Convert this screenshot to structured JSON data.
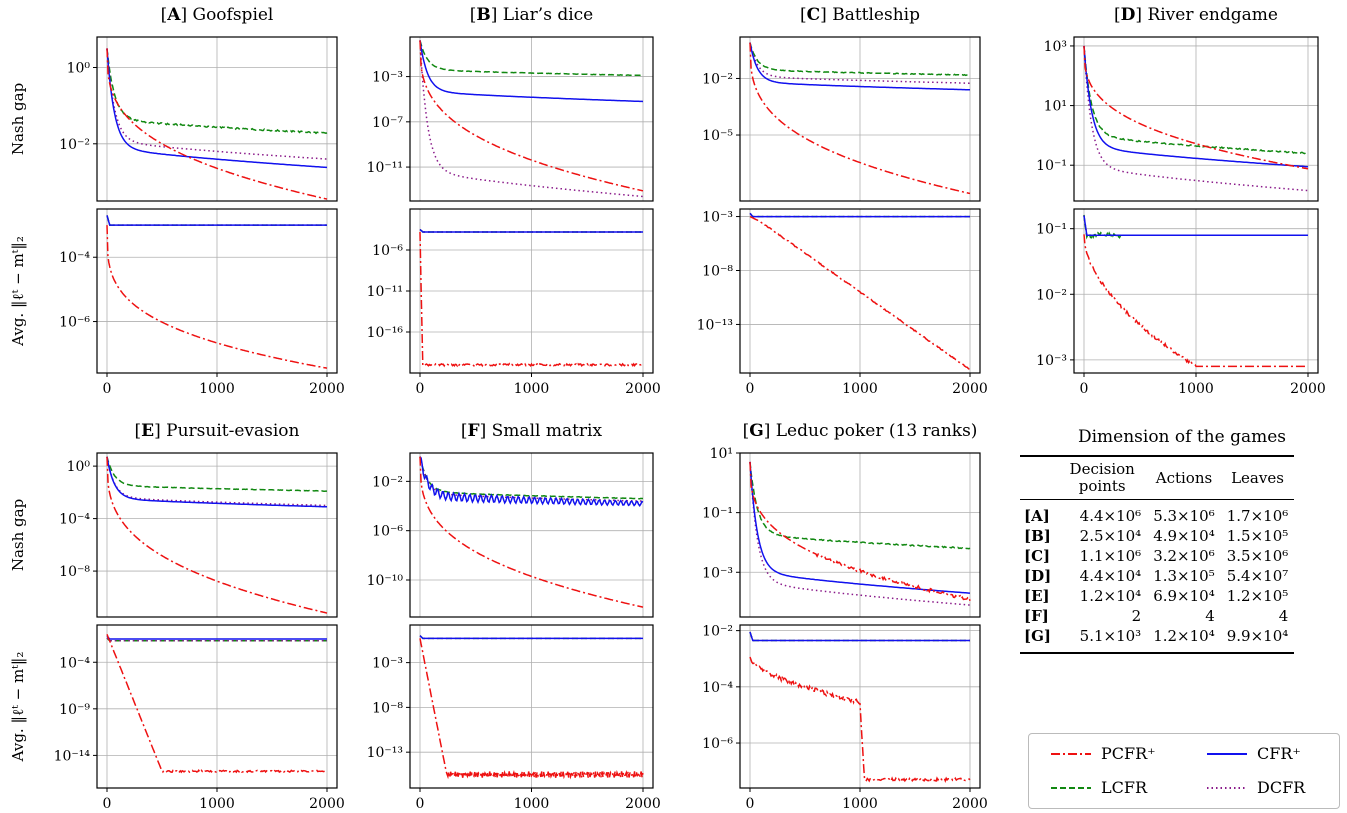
{
  "chart_data": [
    {
      "id": "A",
      "type": "line",
      "title": "[A] Goofspiel",
      "title_letter": "A",
      "title_name": "Goofspiel",
      "panels": [
        {
          "ylabel": "Nash gap",
          "yscale": "log",
          "ylim": [
            -3.5,
            0.8
          ],
          "yticks": [
            {
              "v": 0,
              "label": "10⁰"
            },
            {
              "v": -2,
              "label": "10⁻²"
            }
          ],
          "series": [
            {
              "name": "LCFR",
              "end": -1.72
            },
            {
              "name": "DCFR",
              "end": -2.4
            },
            {
              "name": "CFR+",
              "end": -2.62
            },
            {
              "name": "PCFR+",
              "end": -3.45
            }
          ]
        },
        {
          "ylabel": "Avg. ‖ℓᵗ − mᵗ‖₂",
          "yscale": "log",
          "ylim": [
            -7.6,
            -2.5
          ],
          "yticks": [
            {
              "v": -4,
              "label": "10⁻⁴"
            },
            {
              "v": -6,
              "label": "10⁻⁶"
            }
          ],
          "series": [
            {
              "name": "LCFR",
              "flat": -3.0
            },
            {
              "name": "DCFR",
              "flat": -3.0
            },
            {
              "name": "CFR+",
              "flat": -3.0
            },
            {
              "name": "PCFR+",
              "start": -3.0,
              "end": -7.45
            }
          ]
        }
      ]
    },
    {
      "id": "B",
      "type": "line",
      "title": "[B] Liar’s dice",
      "title_letter": "B",
      "title_name": "Liar’s dice",
      "panels": [
        {
          "ylabel": "",
          "yscale": "log",
          "ylim": [
            -14,
            0.5
          ],
          "yticks": [
            {
              "v": -3,
              "label": "10⁻³"
            },
            {
              "v": -7,
              "label": "10⁻⁷"
            },
            {
              "v": -11,
              "label": "10⁻¹¹"
            }
          ],
          "series": [
            {
              "name": "LCFR",
              "end": -2.9
            },
            {
              "name": "CFR+",
              "end": -5.2
            },
            {
              "name": "PCFR+",
              "end": -13.1
            },
            {
              "name": "DCFR",
              "end": -13.6
            }
          ]
        },
        {
          "ylabel": "",
          "yscale": "log",
          "ylim": [
            -21,
            -1
          ],
          "yticks": [
            {
              "v": -6,
              "label": "10⁻⁶"
            },
            {
              "v": -11,
              "label": "10⁻¹¹"
            },
            {
              "v": -16,
              "label": "10⁻¹⁶"
            }
          ],
          "series": [
            {
              "name": "LCFR",
              "flat": -3.8
            },
            {
              "name": "DCFR",
              "flat": -3.8
            },
            {
              "name": "CFR+",
              "flat": -3.8
            },
            {
              "name": "PCFR+",
              "start": -3.8,
              "end": -20.0
            }
          ]
        }
      ]
    },
    {
      "id": "C",
      "type": "line",
      "title": "[C] Battleship",
      "title_letter": "C",
      "title_name": "Battleship",
      "panels": [
        {
          "ylabel": "",
          "yscale": "log",
          "ylim": [
            -8.5,
            0.2
          ],
          "yticks": [
            {
              "v": -2,
              "label": "10⁻²"
            },
            {
              "v": -5,
              "label": "10⁻⁵"
            }
          ],
          "series": [
            {
              "name": "LCFR",
              "end": -1.82
            },
            {
              "name": "DCFR",
              "end": -2.25
            },
            {
              "name": "CFR+",
              "end": -2.6
            },
            {
              "name": "PCFR+",
              "end": -8.1
            }
          ]
        },
        {
          "ylabel": "",
          "yscale": "log",
          "ylim": [
            -17.5,
            -2.3
          ],
          "yticks": [
            {
              "v": -3,
              "label": "10⁻³"
            },
            {
              "v": -8,
              "label": "10⁻⁸"
            },
            {
              "v": -13,
              "label": "10⁻¹³"
            }
          ],
          "series": [
            {
              "name": "LCFR",
              "flat": -3.0
            },
            {
              "name": "DCFR",
              "flat": -3.0
            },
            {
              "name": "CFR+",
              "flat": -3.0
            },
            {
              "name": "PCFR+",
              "start": -3.0,
              "end": -17.2
            }
          ]
        }
      ]
    },
    {
      "id": "D",
      "type": "line",
      "title": "[D] River endgame",
      "title_letter": "D",
      "title_name": "River endgame",
      "panels": [
        {
          "ylabel": "",
          "yscale": "log",
          "ylim": [
            -2.2,
            3.3
          ],
          "yticks": [
            {
              "v": 3,
              "label": "10³"
            },
            {
              "v": 1,
              "label": "10¹"
            },
            {
              "v": -1,
              "label": "10⁻¹"
            }
          ],
          "series": [
            {
              "name": "LCFR",
              "end": -0.6
            },
            {
              "name": "CFR+",
              "end": -1.05
            },
            {
              "name": "PCFR+",
              "end": -1.12
            },
            {
              "name": "DCFR",
              "end": -1.85
            }
          ]
        },
        {
          "ylabel": "",
          "yscale": "log",
          "ylim": [
            -3.2,
            -0.7
          ],
          "yticks": [
            {
              "v": -1,
              "label": "10⁻¹"
            },
            {
              "v": -2,
              "label": "10⁻²"
            },
            {
              "v": -3,
              "label": "10⁻³"
            }
          ],
          "series": [
            {
              "name": "LCFR",
              "flat": -1.1
            },
            {
              "name": "DCFR",
              "flat": -1.1
            },
            {
              "name": "CFR+",
              "flat": -1.1
            },
            {
              "name": "PCFR+",
              "start": -1.1,
              "end": -3.1
            }
          ]
        }
      ]
    },
    {
      "id": "E",
      "type": "line",
      "title": "[E] Pursuit-evasion",
      "title_letter": "E",
      "title_name": "Pursuit-evasion",
      "panels": [
        {
          "ylabel": "Nash gap",
          "yscale": "log",
          "ylim": [
            -11.5,
            1
          ],
          "yticks": [
            {
              "v": 0,
              "label": "10⁰"
            },
            {
              "v": -4,
              "label": "10⁻⁴"
            },
            {
              "v": -8,
              "label": "10⁻⁸"
            }
          ],
          "series": [
            {
              "name": "LCFR",
              "end": -1.9
            },
            {
              "name": "DCFR",
              "end": -3.0
            },
            {
              "name": "CFR+",
              "end": -3.1
            },
            {
              "name": "PCFR+",
              "end": -11.2
            }
          ]
        },
        {
          "ylabel": "Avg. ‖ℓᵗ − mᵗ‖₂",
          "yscale": "log",
          "ylim": [
            -17.5,
            0
          ],
          "yticks": [
            {
              "v": -4,
              "label": "10⁻⁴"
            },
            {
              "v": -9,
              "label": "10⁻⁹"
            },
            {
              "v": -14,
              "label": "10⁻¹⁴"
            }
          ],
          "series": [
            {
              "name": "LCFR",
              "flat": -1.7
            },
            {
              "name": "DCFR",
              "flat": -1.7
            },
            {
              "name": "CFR+",
              "flat": -1.5
            },
            {
              "name": "PCFR+",
              "start": -1.0,
              "end": -15.7
            }
          ]
        }
      ]
    },
    {
      "id": "F",
      "type": "line",
      "title": "[F] Small matrix",
      "title_letter": "F",
      "title_name": "Small matrix",
      "panels": [
        {
          "ylabel": "",
          "yscale": "log",
          "ylim": [
            -13,
            0.3
          ],
          "yticks": [
            {
              "v": -2,
              "label": "10⁻²"
            },
            {
              "v": -6,
              "label": "10⁻⁶"
            },
            {
              "v": -10,
              "label": "10⁻¹⁰"
            }
          ],
          "series": [
            {
              "name": "LCFR",
              "end": -3.4
            },
            {
              "name": "DCFR",
              "end": -3.6
            },
            {
              "name": "CFR+",
              "end": -3.8
            },
            {
              "name": "PCFR+",
              "end": -12.2
            }
          ]
        },
        {
          "ylabel": "",
          "yscale": "log",
          "ylim": [
            -17,
            1.2
          ],
          "yticks": [
            {
              "v": -3,
              "label": "10⁻³"
            },
            {
              "v": -8,
              "label": "10⁻⁸"
            },
            {
              "v": -13,
              "label": "10⁻¹³"
            }
          ],
          "series": [
            {
              "name": "LCFR",
              "flat": -0.3
            },
            {
              "name": "DCFR",
              "flat": -0.3
            },
            {
              "name": "CFR+",
              "flat": -0.3
            },
            {
              "name": "PCFR+",
              "start": -0.3,
              "end": -15.5
            }
          ]
        }
      ]
    },
    {
      "id": "G",
      "type": "line",
      "title": "[G] Leduc poker (13 ranks)",
      "title_letter": "G",
      "title_name": "Leduc poker (13 ranks)",
      "panels": [
        {
          "ylabel": "",
          "yscale": "log",
          "ylim": [
            -4.5,
            1
          ],
          "yticks": [
            {
              "v": 1,
              "label": "10¹"
            },
            {
              "v": -1,
              "label": "10⁻¹"
            },
            {
              "v": -3,
              "label": "10⁻³"
            }
          ],
          "series": [
            {
              "name": "LCFR",
              "end": -2.2
            },
            {
              "name": "CFR+",
              "end": -3.7
            },
            {
              "name": "PCFR+",
              "end": -3.9
            },
            {
              "name": "DCFR",
              "end": -4.1
            }
          ]
        },
        {
          "ylabel": "",
          "yscale": "log",
          "ylim": [
            -7.6,
            -1.8
          ],
          "yticks": [
            {
              "v": -2,
              "label": "10⁻²"
            },
            {
              "v": -4,
              "label": "10⁻⁴"
            },
            {
              "v": -6,
              "label": "10⁻⁶"
            }
          ],
          "series": [
            {
              "name": "LCFR",
              "flat": -2.35
            },
            {
              "name": "DCFR",
              "flat": -2.35
            },
            {
              "name": "CFR+",
              "flat": -2.35
            },
            {
              "name": "PCFR+",
              "start": -2.35,
              "end": -7.3
            }
          ]
        }
      ]
    }
  ],
  "xaxis": {
    "xlim": [
      0,
      2000
    ],
    "ticks": [
      "0",
      "1000",
      "2000"
    ]
  },
  "colors": {
    "PCFR+": "#ee1111",
    "CFR+": "#1111ee",
    "LCFR": "#118811",
    "DCFR": "#8a1a8a"
  },
  "dimensions": {
    "title": "Dimension of the games",
    "headers": {
      "col1": "Decision points",
      "col2": "Actions",
      "col3": "Leaves"
    },
    "rows": [
      {
        "label": "[A]",
        "dp": "4.4×10⁶",
        "actions": "5.3×10⁶",
        "leaves": "1.7×10⁶"
      },
      {
        "label": "[B]",
        "dp": "2.5×10⁴",
        "actions": "4.9×10⁴",
        "leaves": "1.5×10⁵"
      },
      {
        "label": "[C]",
        "dp": "1.1×10⁶",
        "actions": "3.2×10⁶",
        "leaves": "3.5×10⁶"
      },
      {
        "label": "[D]",
        "dp": "4.4×10⁴",
        "actions": "1.3×10⁵",
        "leaves": "5.4×10⁷"
      },
      {
        "label": "[E]",
        "dp": "1.2×10⁴",
        "actions": "6.9×10⁴",
        "leaves": "1.2×10⁵"
      },
      {
        "label": "[F]",
        "dp": "2",
        "actions": "4",
        "leaves": "4"
      },
      {
        "label": "[G]",
        "dp": "5.1×10³",
        "actions": "1.2×10⁴",
        "leaves": "9.9×10⁴"
      }
    ]
  },
  "legend": {
    "pcfr": "PCFR⁺",
    "cfr": "CFR⁺",
    "lcfr": "LCFR",
    "dcfr": "DCFR"
  }
}
